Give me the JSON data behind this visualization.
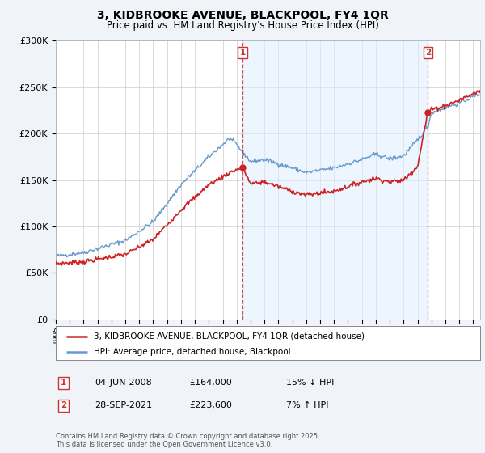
{
  "title": "3, KIDBROOKE AVENUE, BLACKPOOL, FY4 1QR",
  "subtitle": "Price paid vs. HM Land Registry's House Price Index (HPI)",
  "hpi_label": "HPI: Average price, detached house, Blackpool",
  "property_label": "3, KIDBROOKE AVENUE, BLACKPOOL, FY4 1QR (detached house)",
  "footer": "Contains HM Land Registry data © Crown copyright and database right 2025.\nThis data is licensed under the Open Government Licence v3.0.",
  "transaction1_date": "04-JUN-2008",
  "transaction1_price": "£164,000",
  "transaction1_hpi": "15% ↓ HPI",
  "transaction2_date": "28-SEP-2021",
  "transaction2_price": "£223,600",
  "transaction2_hpi": "7% ↑ HPI",
  "ylim": [
    0,
    300000
  ],
  "xlim_start": 1995.0,
  "xlim_end": 2025.5,
  "transaction1_x": 2008.42,
  "transaction2_x": 2021.75,
  "hpi_color": "#6699cc",
  "property_color": "#cc2222",
  "vline_color": "#cc3333",
  "background_color": "#f0f4f8",
  "plot_bg": "#ffffff",
  "shade_color": "#ddeeff",
  "yticks": [
    0,
    50000,
    100000,
    150000,
    200000,
    250000,
    300000
  ],
  "xlim_years": [
    1995,
    2025
  ]
}
